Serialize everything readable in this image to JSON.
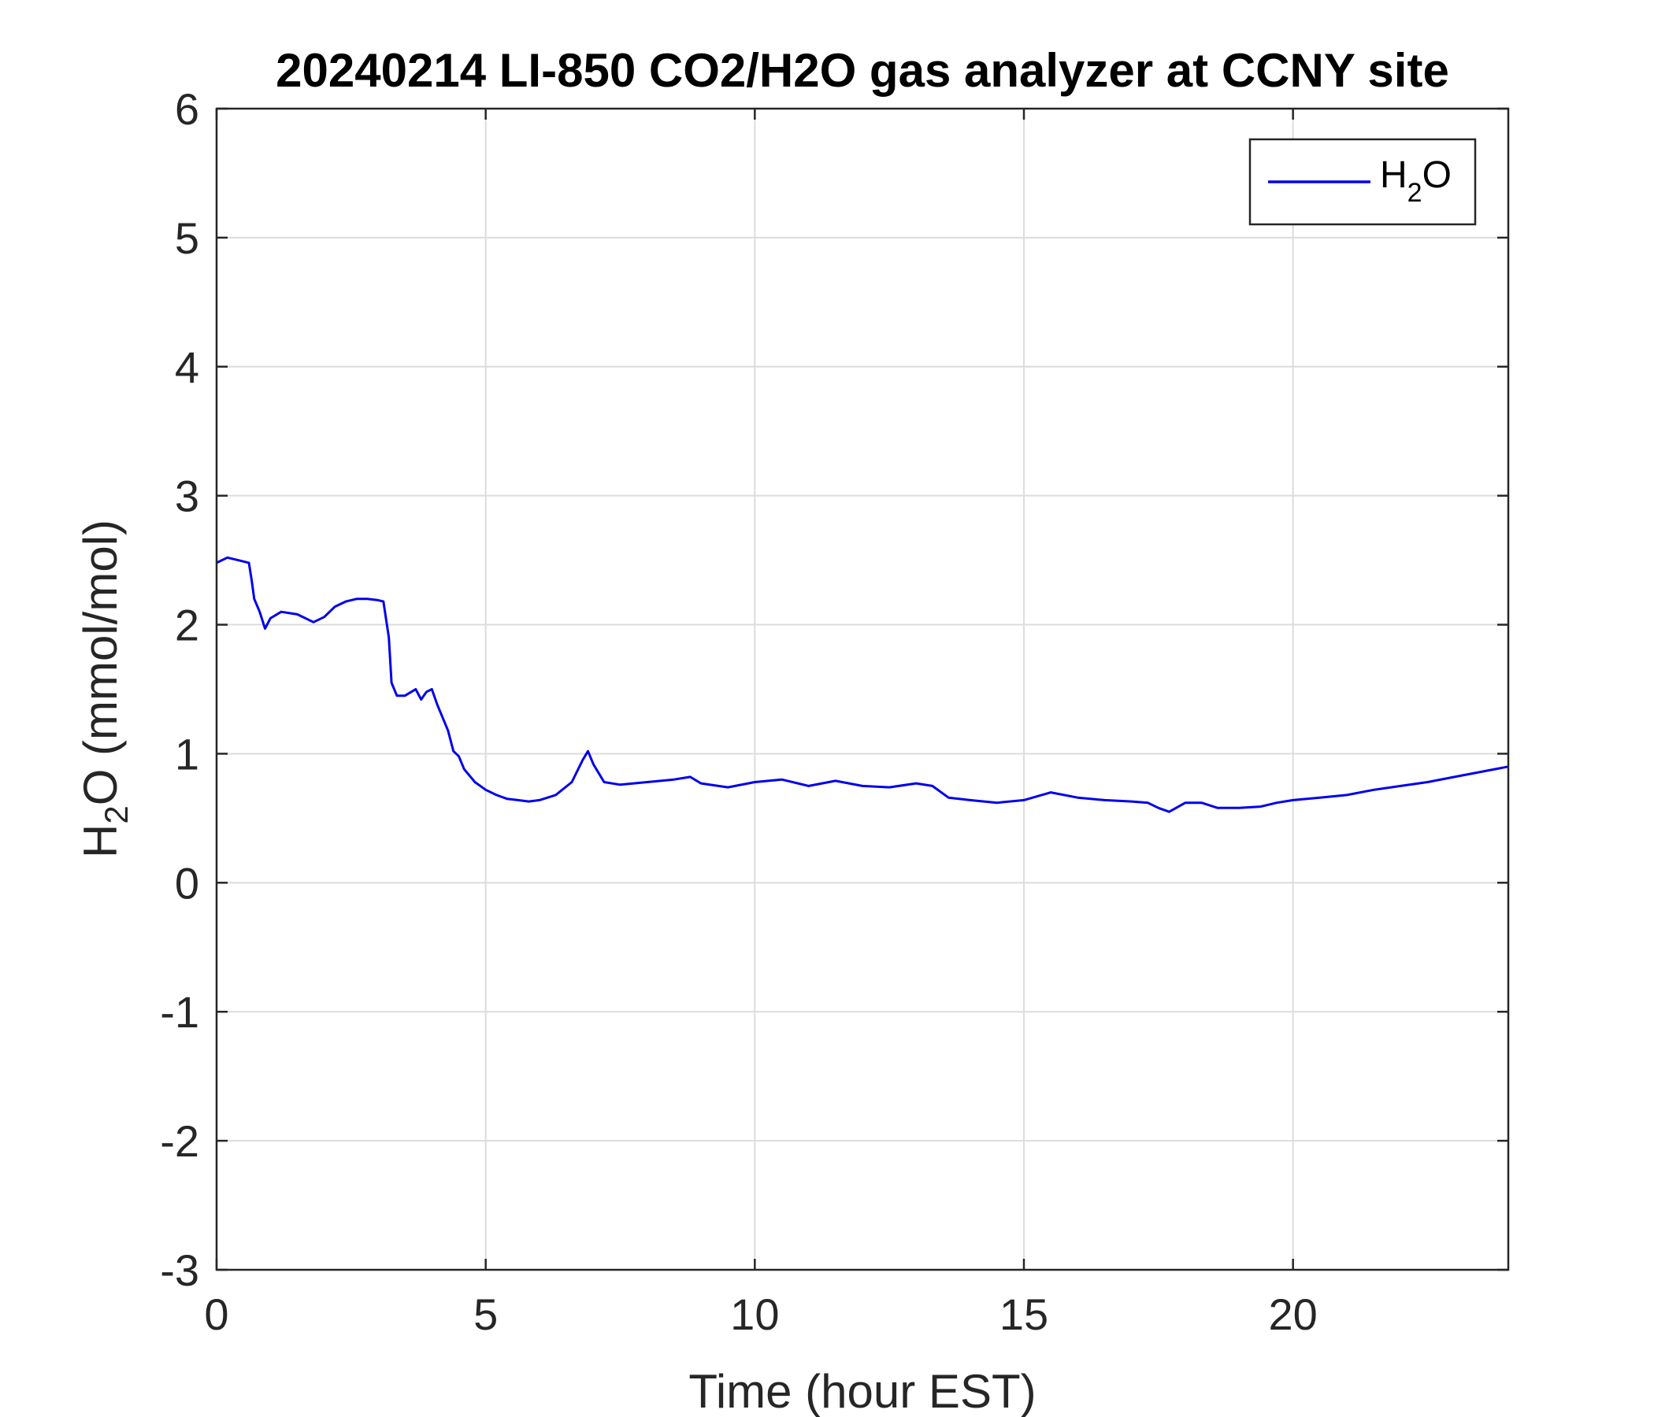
{
  "chart_data": {
    "type": "line",
    "title": "20240214 LI-850 CO2/H2O gas analyzer at CCNY site",
    "xlabel": "Time (hour EST)",
    "ylabel": {
      "pre": "H",
      "sub": "2",
      "post": "O (mmol/mol)"
    },
    "xlim": [
      0,
      24
    ],
    "ylim": [
      -3,
      6
    ],
    "xticks": [
      0,
      5,
      10,
      15,
      20
    ],
    "xtick_labels": [
      "0",
      "5",
      "10",
      "15",
      "20"
    ],
    "yticks": [
      -3,
      -2,
      -1,
      0,
      1,
      2,
      3,
      4,
      5,
      6
    ],
    "ytick_labels": [
      "-3",
      "-2",
      "-1",
      "0",
      "1",
      "2",
      "3",
      "4",
      "5",
      "6"
    ],
    "grid": true,
    "legend": {
      "placement": "top-right",
      "entries": [
        {
          "pre": "H",
          "sub": "2",
          "post": "O"
        }
      ]
    },
    "series": [
      {
        "color": "#0000ee",
        "x": [
          0.0,
          0.2,
          0.4,
          0.6,
          0.65,
          0.7,
          0.8,
          0.9,
          1.0,
          1.2,
          1.5,
          1.8,
          2.0,
          2.2,
          2.4,
          2.6,
          2.8,
          3.0,
          3.1,
          3.2,
          3.25,
          3.35,
          3.5,
          3.7,
          3.8,
          3.9,
          4.0,
          4.1,
          4.2,
          4.3,
          4.4,
          4.5,
          4.6,
          4.8,
          5.0,
          5.2,
          5.4,
          5.6,
          5.8,
          6.0,
          6.3,
          6.6,
          6.8,
          6.9,
          7.0,
          7.2,
          7.5,
          8.0,
          8.5,
          8.8,
          9.0,
          9.5,
          10.0,
          10.5,
          11.0,
          11.5,
          12.0,
          12.5,
          13.0,
          13.3,
          13.6,
          14.0,
          14.5,
          15.0,
          15.5,
          16.0,
          16.5,
          17.0,
          17.3,
          17.5,
          17.7,
          18.0,
          18.3,
          18.6,
          19.0,
          19.4,
          19.7,
          20.0,
          20.5,
          21.0,
          21.5,
          22.0,
          22.5,
          23.0,
          23.5,
          24.0
        ],
        "y": [
          2.48,
          2.52,
          2.5,
          2.48,
          2.35,
          2.2,
          2.1,
          1.97,
          2.05,
          2.1,
          2.08,
          2.02,
          2.06,
          2.14,
          2.18,
          2.2,
          2.2,
          2.19,
          2.18,
          1.9,
          1.55,
          1.45,
          1.45,
          1.5,
          1.42,
          1.48,
          1.5,
          1.38,
          1.28,
          1.18,
          1.02,
          0.98,
          0.88,
          0.78,
          0.72,
          0.68,
          0.65,
          0.64,
          0.63,
          0.64,
          0.68,
          0.78,
          0.95,
          1.02,
          0.92,
          0.78,
          0.76,
          0.78,
          0.8,
          0.82,
          0.77,
          0.74,
          0.78,
          0.8,
          0.75,
          0.79,
          0.75,
          0.74,
          0.77,
          0.75,
          0.66,
          0.64,
          0.62,
          0.64,
          0.7,
          0.66,
          0.64,
          0.63,
          0.62,
          0.58,
          0.55,
          0.62,
          0.62,
          0.58,
          0.58,
          0.59,
          0.62,
          0.64,
          0.66,
          0.68,
          0.72,
          0.75,
          0.78,
          0.82,
          0.86,
          0.9
        ]
      }
    ]
  }
}
